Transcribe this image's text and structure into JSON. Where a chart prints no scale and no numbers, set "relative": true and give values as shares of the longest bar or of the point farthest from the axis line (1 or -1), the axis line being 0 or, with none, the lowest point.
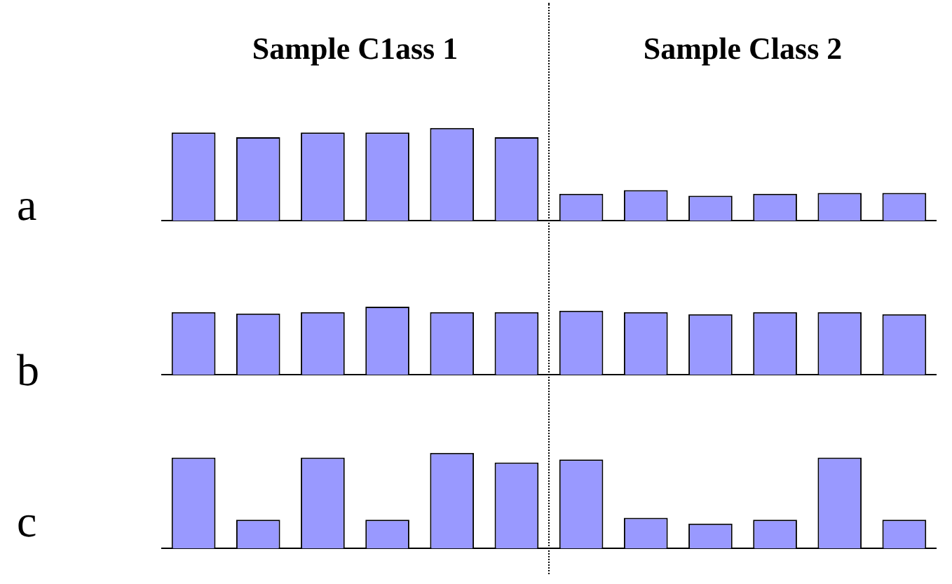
{
  "chart_data": [
    {
      "type": "bar",
      "ylabel": "a",
      "relative": true,
      "annotations": [
        "Sample C1ass 1",
        "Sample Class 2"
      ],
      "categories": [
        null,
        null,
        null,
        null,
        null,
        null,
        null,
        null,
        null,
        null,
        null,
        null
      ],
      "color": "#9999ff",
      "values": [
        0.95,
        0.9,
        0.95,
        0.95,
        1,
        0.9,
        0.29,
        0.33,
        0.27,
        0.29,
        0.3,
        0.3
      ]
    },
    {
      "type": "bar",
      "ylabel": "b",
      "relative": true,
      "categories": [
        null,
        null,
        null,
        null,
        null,
        null,
        null,
        null,
        null,
        null,
        null,
        null
      ],
      "color": "#9999ff",
      "values": [
        0.92,
        0.9,
        0.92,
        1,
        0.92,
        0.92,
        0.94,
        0.92,
        0.89,
        0.92,
        0.92,
        0.89
      ]
    },
    {
      "type": "bar",
      "ylabel": "c",
      "relative": true,
      "categories": [
        null,
        null,
        null,
        null,
        null,
        null,
        null,
        null,
        null,
        null,
        null,
        null
      ],
      "color": "#9999ff",
      "values": [
        0.95,
        0.3,
        0.95,
        0.3,
        1,
        0.9,
        0.93,
        0.32,
        0.26,
        0.3,
        0.95,
        0.3
      ]
    }
  ]
}
